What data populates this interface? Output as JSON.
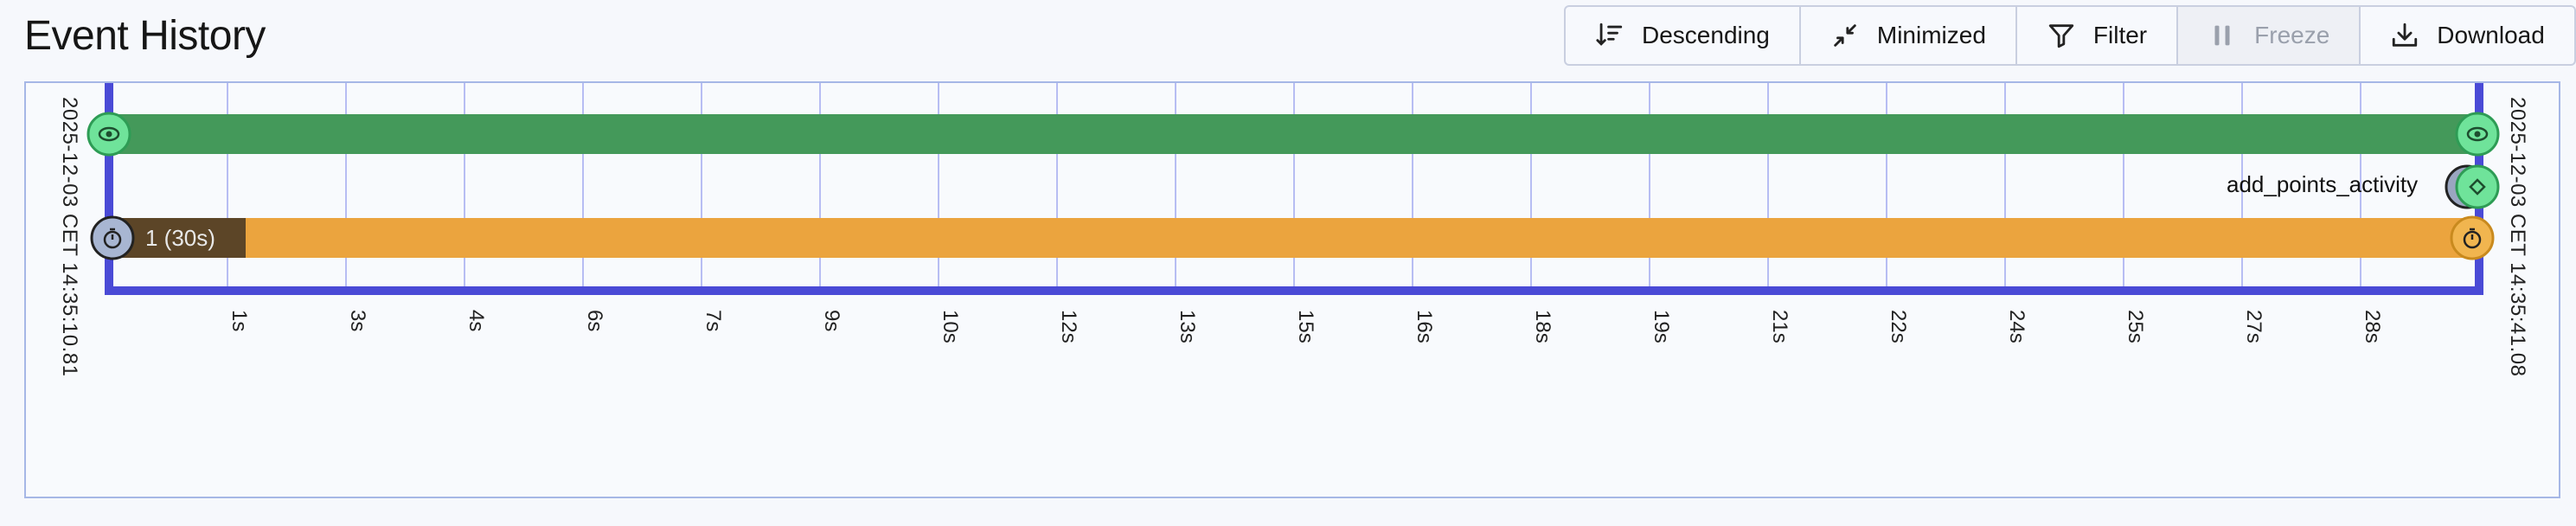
{
  "header": {
    "title": "Event History"
  },
  "toolbar": {
    "descending": {
      "label": "Descending",
      "icon": "sort-descending-icon"
    },
    "minimized": {
      "label": "Minimized",
      "icon": "minimize-icon"
    },
    "filter": {
      "label": "Filter",
      "icon": "filter-icon"
    },
    "freeze": {
      "label": "Freeze",
      "icon": "pause-icon",
      "disabled": true
    },
    "download": {
      "label": "Download",
      "icon": "download-icon"
    }
  },
  "timeline": {
    "start_label": "2025-12-03 CET 14:35:10.81",
    "end_label": "2025-12-03 CET 14:35:41.08",
    "ticks": [
      "1s",
      "3s",
      "4s",
      "6s",
      "7s",
      "9s",
      "10s",
      "12s",
      "13s",
      "15s",
      "16s",
      "18s",
      "19s",
      "21s",
      "22s",
      "24s",
      "25s",
      "27s",
      "28s"
    ],
    "workflow_lane": {
      "color": "#44995a",
      "start_icon": "eye-icon",
      "end_icon": "eye-icon"
    },
    "activity": {
      "label": "add_points_activity",
      "icon": "diamond-icon"
    },
    "timer_lane": {
      "color": "#eba43e",
      "badge_color": "#5c4527",
      "badge_label": "1 (30s)",
      "start_icon": "stopwatch-icon",
      "end_icon": "stopwatch-icon"
    },
    "colors": {
      "axis": "#4a4ad6",
      "grid": "#b7bdf3",
      "green_circle": "#6fe39a",
      "timer_circle_start": "#a8b6d2",
      "timer_circle_end": "#f1b54f"
    }
  }
}
